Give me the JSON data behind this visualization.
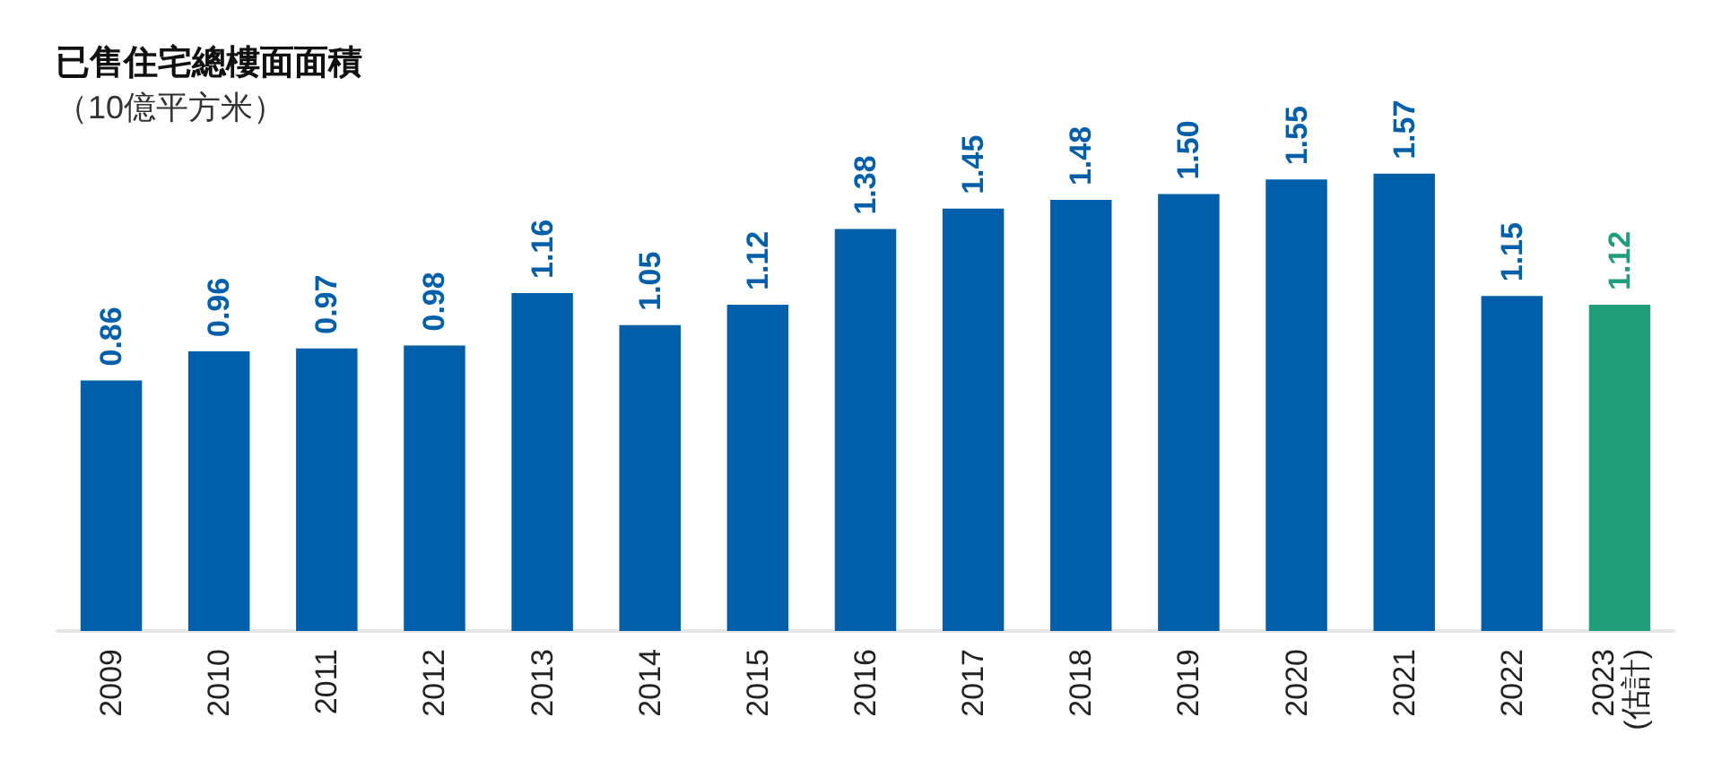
{
  "chart_data": {
    "type": "bar",
    "title": "已售住宅總樓面面積",
    "subtitle": "（10億平方米）",
    "categories": [
      "2009",
      "2010",
      "2011",
      "2012",
      "2013",
      "2014",
      "2015",
      "2016",
      "2017",
      "2018",
      "2019",
      "2020",
      "2021",
      "2022",
      "2023\n(估計)"
    ],
    "values": [
      0.86,
      0.96,
      0.97,
      0.98,
      1.16,
      1.05,
      1.12,
      1.38,
      1.45,
      1.48,
      1.5,
      1.55,
      1.57,
      1.15,
      1.12
    ],
    "value_labels": [
      "0.86",
      "0.96",
      "0.97",
      "0.98",
      "1.16",
      "1.05",
      "1.12",
      "1.38",
      "1.45",
      "1.48",
      "1.50",
      "1.55",
      "1.57",
      "1.15",
      "1.12"
    ],
    "colors": [
      "#005fa8",
      "#005fa8",
      "#005fa8",
      "#005fa8",
      "#005fa8",
      "#005fa8",
      "#005fa8",
      "#005fa8",
      "#005fa8",
      "#005fa8",
      "#005fa8",
      "#005fa8",
      "#005fa8",
      "#005fa8",
      "#209e7c"
    ],
    "tick_labels": "x",
    "grid": false
  }
}
